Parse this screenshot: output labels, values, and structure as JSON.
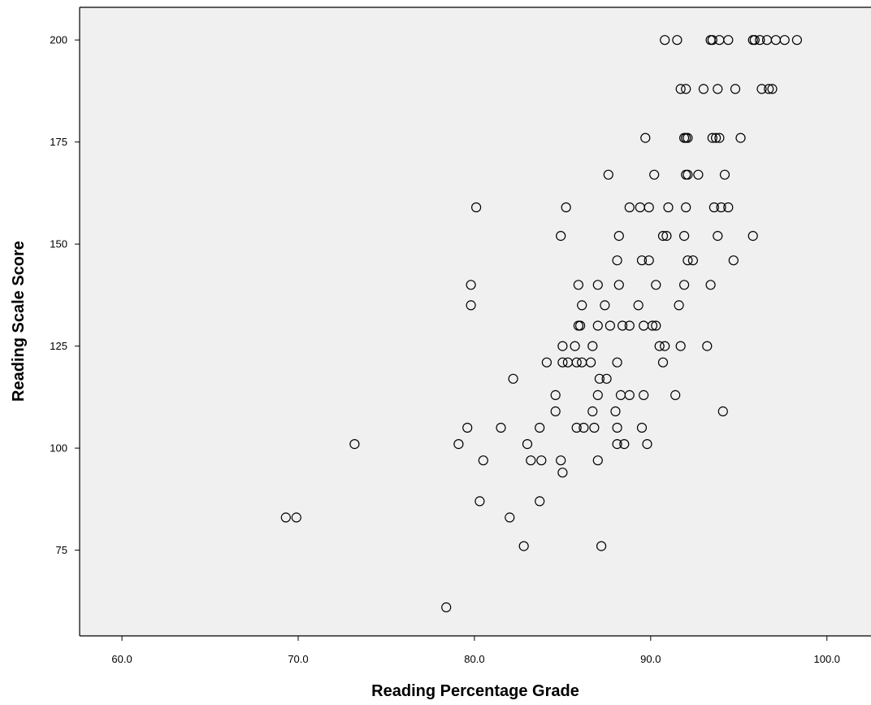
{
  "chart_data": {
    "type": "scatter",
    "xlabel": "Reading Percentage Grade",
    "ylabel": "Reading Scale Score",
    "xlim": [
      57.6,
      102.5
    ],
    "ylim": [
      54.0,
      208.0
    ],
    "x_ticks": [
      60,
      70,
      80,
      90,
      100
    ],
    "x_tick_labels": [
      "60.0",
      "70.0",
      "80.0",
      "90.0",
      "100.0"
    ],
    "y_ticks": [
      75,
      100,
      125,
      150,
      175,
      200
    ],
    "y_tick_labels": [
      "75",
      "100",
      "125",
      "150",
      "175",
      "200"
    ],
    "grid": false,
    "legend": "none",
    "colors": {
      "plot_background": "#f0f0f0",
      "marker_stroke": "#000000",
      "page_background": "#ffffff"
    },
    "points": [
      [
        90.8,
        200
      ],
      [
        91.5,
        200
      ],
      [
        93.4,
        200
      ],
      [
        93.5,
        200
      ],
      [
        93.9,
        200
      ],
      [
        94.4,
        200
      ],
      [
        95.8,
        200
      ],
      [
        95.9,
        200
      ],
      [
        96.2,
        200
      ],
      [
        96.6,
        200
      ],
      [
        97.1,
        200
      ],
      [
        97.6,
        200
      ],
      [
        98.3,
        200
      ],
      [
        91.7,
        188
      ],
      [
        92.0,
        188
      ],
      [
        93.0,
        188
      ],
      [
        93.8,
        188
      ],
      [
        94.8,
        188
      ],
      [
        96.3,
        188
      ],
      [
        96.7,
        188
      ],
      [
        96.9,
        188
      ],
      [
        89.7,
        176
      ],
      [
        91.9,
        176
      ],
      [
        92.0,
        176
      ],
      [
        92.1,
        176
      ],
      [
        93.5,
        176
      ],
      [
        93.7,
        176
      ],
      [
        93.9,
        176
      ],
      [
        95.1,
        176
      ],
      [
        87.6,
        167
      ],
      [
        90.2,
        167
      ],
      [
        92.0,
        167
      ],
      [
        92.1,
        167
      ],
      [
        92.7,
        167
      ],
      [
        94.2,
        167
      ],
      [
        80.1,
        159
      ],
      [
        85.2,
        159
      ],
      [
        88.8,
        159
      ],
      [
        89.4,
        159
      ],
      [
        89.9,
        159
      ],
      [
        91.0,
        159
      ],
      [
        92.0,
        159
      ],
      [
        93.6,
        159
      ],
      [
        94.0,
        159
      ],
      [
        94.4,
        159
      ],
      [
        84.9,
        152
      ],
      [
        88.2,
        152
      ],
      [
        90.7,
        152
      ],
      [
        90.9,
        152
      ],
      [
        91.9,
        152
      ],
      [
        93.8,
        152
      ],
      [
        95.8,
        152
      ],
      [
        88.1,
        146
      ],
      [
        89.5,
        146
      ],
      [
        89.9,
        146
      ],
      [
        92.1,
        146
      ],
      [
        92.4,
        146
      ],
      [
        94.7,
        146
      ],
      [
        79.8,
        140
      ],
      [
        85.9,
        140
      ],
      [
        87.0,
        140
      ],
      [
        88.2,
        140
      ],
      [
        90.3,
        140
      ],
      [
        91.9,
        140
      ],
      [
        93.4,
        140
      ],
      [
        79.8,
        135
      ],
      [
        86.1,
        135
      ],
      [
        87.4,
        135
      ],
      [
        89.3,
        135
      ],
      [
        91.6,
        135
      ],
      [
        85.9,
        130
      ],
      [
        86.0,
        130
      ],
      [
        87.0,
        130
      ],
      [
        87.7,
        130
      ],
      [
        88.4,
        130
      ],
      [
        88.8,
        130
      ],
      [
        89.6,
        130
      ],
      [
        90.1,
        130
      ],
      [
        90.3,
        130
      ],
      [
        85.0,
        125
      ],
      [
        85.7,
        125
      ],
      [
        86.7,
        125
      ],
      [
        90.5,
        125
      ],
      [
        90.8,
        125
      ],
      [
        91.7,
        125
      ],
      [
        93.2,
        125
      ],
      [
        84.1,
        121
      ],
      [
        85.0,
        121
      ],
      [
        85.3,
        121
      ],
      [
        85.8,
        121
      ],
      [
        86.1,
        121
      ],
      [
        86.6,
        121
      ],
      [
        88.1,
        121
      ],
      [
        90.7,
        121
      ],
      [
        82.2,
        117
      ],
      [
        87.1,
        117
      ],
      [
        87.5,
        117
      ],
      [
        84.6,
        113
      ],
      [
        87.0,
        113
      ],
      [
        88.3,
        113
      ],
      [
        88.8,
        113
      ],
      [
        89.6,
        113
      ],
      [
        91.4,
        113
      ],
      [
        84.6,
        109
      ],
      [
        86.7,
        109
      ],
      [
        88.0,
        109
      ],
      [
        94.1,
        109
      ],
      [
        79.6,
        105
      ],
      [
        81.5,
        105
      ],
      [
        83.7,
        105
      ],
      [
        85.8,
        105
      ],
      [
        86.2,
        105
      ],
      [
        86.8,
        105
      ],
      [
        88.1,
        105
      ],
      [
        89.5,
        105
      ],
      [
        73.2,
        101
      ],
      [
        79.1,
        101
      ],
      [
        83.0,
        101
      ],
      [
        88.1,
        101
      ],
      [
        88.5,
        101
      ],
      [
        89.8,
        101
      ],
      [
        80.5,
        97
      ],
      [
        83.2,
        97
      ],
      [
        83.8,
        97
      ],
      [
        84.9,
        97
      ],
      [
        87.0,
        97
      ],
      [
        85.0,
        94
      ],
      [
        80.3,
        87
      ],
      [
        83.7,
        87
      ],
      [
        69.3,
        83
      ],
      [
        69.9,
        83
      ],
      [
        82.0,
        83
      ],
      [
        82.8,
        76
      ],
      [
        87.2,
        76
      ],
      [
        78.4,
        61
      ]
    ]
  }
}
